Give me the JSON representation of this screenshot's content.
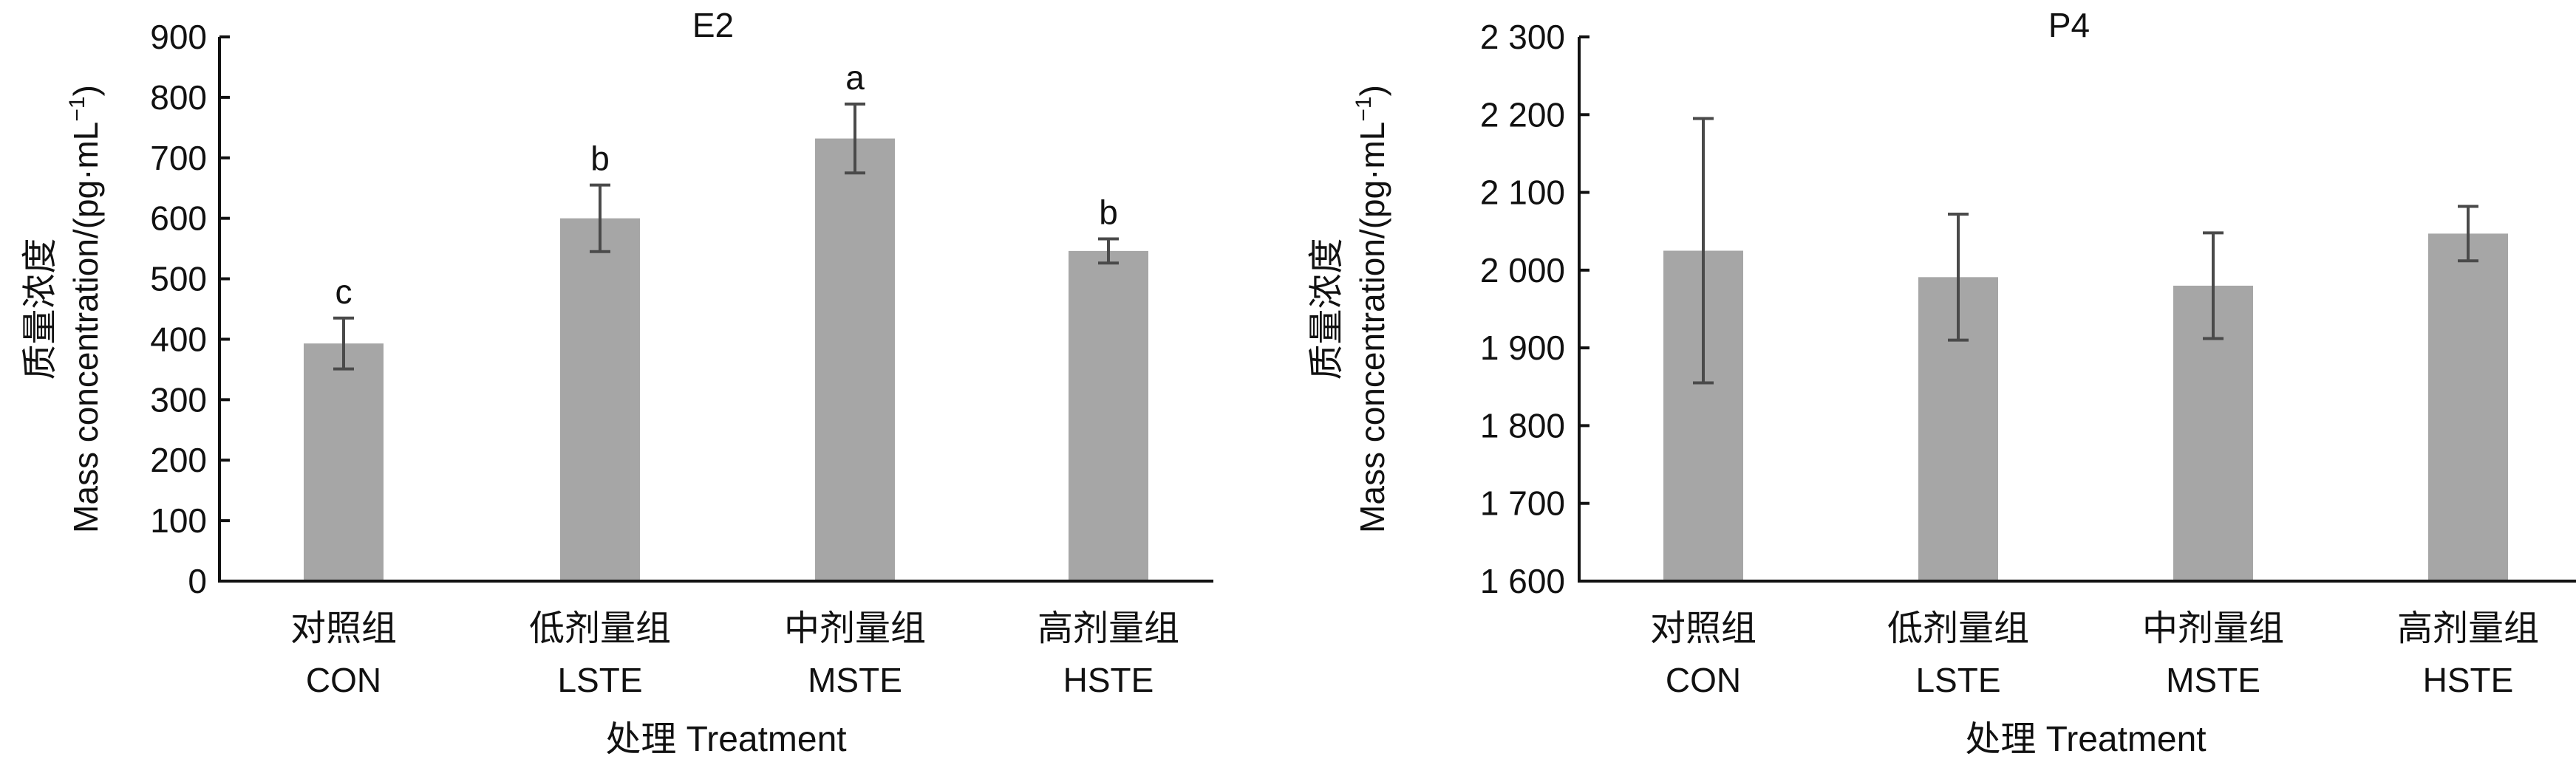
{
  "colors": {
    "bar": "#a6a6a6",
    "axis": "#111111",
    "errorbar": "#4a4a4a"
  },
  "chart_data": [
    {
      "type": "bar",
      "title": "E2",
      "ylabel_cn": "质量浓度",
      "ylabel_en": "Mass concentration/(pg·mL",
      "ylabel_sup": "−1",
      "ylabel_close": ")",
      "xlabel": "处理 Treatment",
      "categories": [
        {
          "cn": "对照组",
          "en": "CON"
        },
        {
          "cn": "低剂量组",
          "en": "LSTE"
        },
        {
          "cn": "中剂量组",
          "en": "MSTE"
        },
        {
          "cn": "高剂量组",
          "en": "HSTE"
        }
      ],
      "values": [
        393,
        600,
        732,
        546
      ],
      "errors": [
        42,
        55,
        57,
        20
      ],
      "sig_labels": [
        "c",
        "b",
        "a",
        "b"
      ],
      "ylim": [
        0,
        900
      ],
      "yticks": [
        0,
        100,
        200,
        300,
        400,
        500,
        600,
        700,
        800,
        900
      ],
      "ytick_labels": [
        "0",
        "100",
        "200",
        "300",
        "400",
        "500",
        "600",
        "700",
        "800",
        "900"
      ],
      "grid": false
    },
    {
      "type": "bar",
      "title": "P4",
      "ylabel_cn": "质量浓度",
      "ylabel_en": "Mass concentration/(pg·mL",
      "ylabel_sup": "−1",
      "ylabel_close": ")",
      "xlabel": "处理 Treatment",
      "categories": [
        {
          "cn": "对照组",
          "en": "CON"
        },
        {
          "cn": "低剂量组",
          "en": "LSTE"
        },
        {
          "cn": "中剂量组",
          "en": "MSTE"
        },
        {
          "cn": "高剂量组",
          "en": "HSTE"
        }
      ],
      "values": [
        2025,
        1991,
        1980,
        2047
      ],
      "errors": [
        170,
        81,
        68,
        35
      ],
      "sig_labels": [],
      "ylim": [
        1600,
        2300
      ],
      "yticks": [
        1600,
        1700,
        1800,
        1900,
        2000,
        2100,
        2200,
        2300
      ],
      "ytick_labels": [
        "1 600",
        "1 700",
        "1 800",
        "1 900",
        "2 000",
        "2 100",
        "2 200",
        "2 300"
      ],
      "grid": false
    }
  ]
}
